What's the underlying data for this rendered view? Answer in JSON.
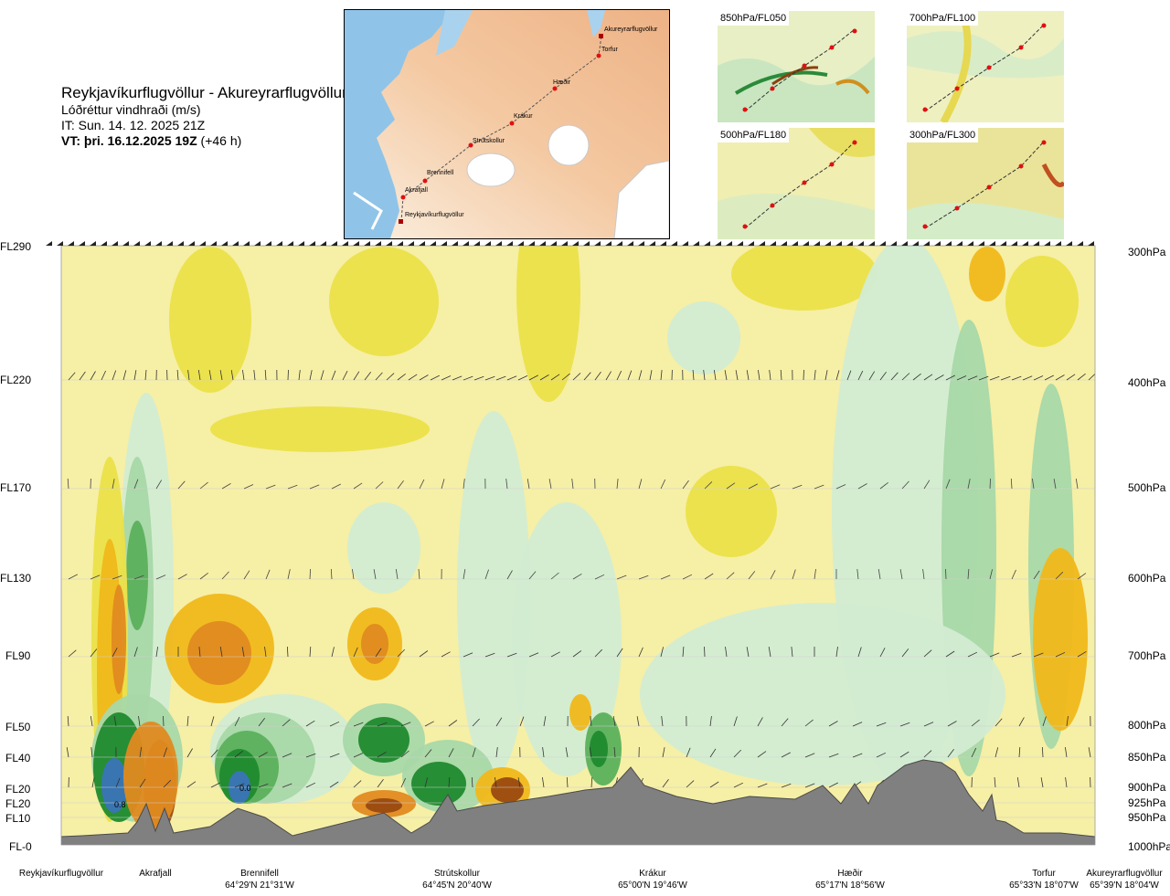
{
  "header": {
    "title": "Reykjavíkurflugvöllur - Akureyrarflugvöllur",
    "subtitle": "Lóðréttur vindhraði (m/s)",
    "it": "IT: Sun. 14. 12. 2025 21Z",
    "vt_bold": "VT: þri. 16.12.2025 19Z",
    "vt_rest": " (+46 h)"
  },
  "route_map": {
    "points": [
      "Reykjavíkurflugvöllur",
      "Akrafjall",
      "Brennifell",
      "Strútskollur",
      "Krákur",
      "Hæðir",
      "Torfur",
      "Akureyrarflugvöllur"
    ]
  },
  "insets": [
    {
      "label": "850hPa/FL050"
    },
    {
      "label": "700hPa/FL100"
    },
    {
      "label": "500hPa/FL180"
    },
    {
      "label": "300hPa/FL300"
    }
  ],
  "chart_data": {
    "type": "heatmap",
    "quantity": "Lóðréttur vindhraði (m/s)",
    "left_axis": [
      "FL290",
      "FL220",
      "FL170",
      "FL130",
      "FL90",
      "FL50",
      "FL40",
      "FL20",
      "FL20",
      "FL10",
      "FL-0"
    ],
    "right_axis": [
      "300hPa",
      "400hPa",
      "500hPa",
      "600hPa",
      "700hPa",
      "800hPa",
      "850hPa",
      "900hPa",
      "925hPa",
      "950hPa",
      "1000hPa"
    ],
    "pressure_levels_hpa": [
      300,
      400,
      500,
      600,
      700,
      800,
      850,
      900,
      925,
      950,
      1000
    ],
    "stations": [
      {
        "name": "Reykjavíkurflugvöllur",
        "coord": ""
      },
      {
        "name": "Akrafjall",
        "coord": ""
      },
      {
        "name": "Brennifell",
        "coord": "64°29'N 21°31'W"
      },
      {
        "name": "Strútskollur",
        "coord": "64°45'N 20°40'W"
      },
      {
        "name": "Krákur",
        "coord": "65°00'N 19°46'W"
      },
      {
        "name": "Hæðir",
        "coord": "65°17'N 18°56'W"
      },
      {
        "name": "Torfur",
        "coord": "65°33'N 18°07'W"
      },
      {
        "name": "Akureyrarflugvöllur",
        "coord": "65°39'N 18°04'W"
      }
    ],
    "annotations": [
      "0.8",
      "0.0"
    ],
    "colors": {
      "strong_down": "#3a74b8",
      "down_2": "#1f8a2e",
      "down_3": "#5bb05b",
      "down_4": "#a8d8a8",
      "down_5": "#d2ecd2",
      "near_zero": "#fdfde6",
      "up_1": "#f6efa6",
      "up_2": "#ebe048",
      "up_3": "#f0b81a",
      "up_4": "#e08a20",
      "strong_up": "#9a4a10",
      "terrain": "#808080"
    }
  }
}
